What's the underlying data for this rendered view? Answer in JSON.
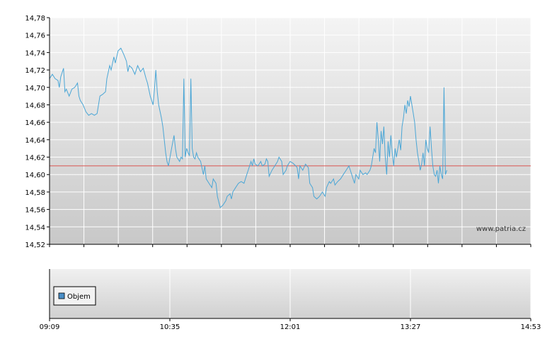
{
  "watermark": "www.patria.cz",
  "legend": {
    "label": "Objem",
    "color": "#4a8fc7"
  },
  "colors": {
    "price_line": "#4aa6d6",
    "reference_line": "#d9534f",
    "grid": "#ffffff",
    "axis": "#000000"
  },
  "chart_data": [
    {
      "type": "line",
      "title": "",
      "xlabel": "",
      "ylabel": "",
      "x_ticks": [
        "09:09",
        "10:35",
        "12:01",
        "13:27",
        "14:53"
      ],
      "x_range": [
        "09:09",
        "14:53"
      ],
      "ylim": [
        14.52,
        14.78
      ],
      "y_ticks": [
        "14,52",
        "14,54",
        "14,56",
        "14,58",
        "14,60",
        "14,62",
        "14,64",
        "14,66",
        "14,68",
        "14,70",
        "14,72",
        "14,74",
        "14,76",
        "14,78"
      ],
      "reference_line": 14.61,
      "series": [
        {
          "name": "",
          "points": [
            [
              "09:09",
              14.71
            ],
            [
              "09:11",
              14.715
            ],
            [
              "09:13",
              14.71
            ],
            [
              "09:15",
              14.708
            ],
            [
              "09:16",
              14.7
            ],
            [
              "09:17",
              14.712
            ],
            [
              "09:19",
              14.722
            ],
            [
              "09:20",
              14.695
            ],
            [
              "09:21",
              14.698
            ],
            [
              "09:23",
              14.69
            ],
            [
              "09:25",
              14.698
            ],
            [
              "09:27",
              14.7
            ],
            [
              "09:29",
              14.705
            ],
            [
              "09:30",
              14.69
            ],
            [
              "09:31",
              14.685
            ],
            [
              "09:33",
              14.68
            ],
            [
              "09:35",
              14.672
            ],
            [
              "09:37",
              14.668
            ],
            [
              "09:39",
              14.67
            ],
            [
              "09:41",
              14.668
            ],
            [
              "09:43",
              14.67
            ],
            [
              "09:45",
              14.69
            ],
            [
              "09:47",
              14.692
            ],
            [
              "09:49",
              14.695
            ],
            [
              "09:50",
              14.71
            ],
            [
              "09:52",
              14.725
            ],
            [
              "09:53",
              14.72
            ],
            [
              "09:55",
              14.735
            ],
            [
              "09:56",
              14.728
            ],
            [
              "09:58",
              14.742
            ],
            [
              "10:00",
              14.745
            ],
            [
              "10:02",
              14.738
            ],
            [
              "10:04",
              14.73
            ],
            [
              "10:05",
              14.718
            ],
            [
              "10:06",
              14.725
            ],
            [
              "10:08",
              14.722
            ],
            [
              "10:10",
              14.715
            ],
            [
              "10:12",
              14.725
            ],
            [
              "10:14",
              14.718
            ],
            [
              "10:16",
              14.722
            ],
            [
              "10:18",
              14.71
            ],
            [
              "10:19",
              14.705
            ],
            [
              "10:21",
              14.69
            ],
            [
              "10:23",
              14.68
            ],
            [
              "10:24",
              14.698
            ],
            [
              "10:25",
              14.72
            ],
            [
              "10:26",
              14.695
            ],
            [
              "10:27",
              14.68
            ],
            [
              "10:29",
              14.665
            ],
            [
              "10:30",
              14.655
            ],
            [
              "10:31",
              14.64
            ],
            [
              "10:32",
              14.625
            ],
            [
              "10:33",
              14.615
            ],
            [
              "10:34",
              14.61
            ],
            [
              "10:36",
              14.628
            ],
            [
              "10:38",
              14.645
            ],
            [
              "10:39",
              14.63
            ],
            [
              "10:40",
              14.62
            ],
            [
              "10:42",
              14.615
            ],
            [
              "10:43",
              14.62
            ],
            [
              "10:44",
              14.618
            ],
            [
              "10:45",
              14.71
            ],
            [
              "10:46",
              14.62
            ],
            [
              "10:47",
              14.63
            ],
            [
              "10:48",
              14.625
            ],
            [
              "10:49",
              14.622
            ],
            [
              "10:50",
              14.71
            ],
            [
              "10:51",
              14.63
            ],
            [
              "10:52",
              14.62
            ],
            [
              "10:53",
              14.618
            ],
            [
              "10:54",
              14.625
            ],
            [
              "10:55",
              14.62
            ],
            [
              "10:57",
              14.615
            ],
            [
              "10:59",
              14.6
            ],
            [
              "11:00",
              14.61
            ],
            [
              "11:01",
              14.595
            ],
            [
              "11:03",
              14.59
            ],
            [
              "11:05",
              14.585
            ],
            [
              "11:06",
              14.595
            ],
            [
              "11:08",
              14.59
            ],
            [
              "11:09",
              14.575
            ],
            [
              "11:11",
              14.562
            ],
            [
              "11:13",
              14.565
            ],
            [
              "11:15",
              14.57
            ],
            [
              "11:16",
              14.575
            ],
            [
              "11:18",
              14.578
            ],
            [
              "11:19",
              14.572
            ],
            [
              "11:20",
              14.58
            ],
            [
              "11:22",
              14.585
            ],
            [
              "11:24",
              14.59
            ],
            [
              "11:26",
              14.592
            ],
            [
              "11:28",
              14.59
            ],
            [
              "11:30",
              14.6
            ],
            [
              "11:31",
              14.605
            ],
            [
              "11:33",
              14.615
            ],
            [
              "11:34",
              14.61
            ],
            [
              "11:35",
              14.618
            ],
            [
              "11:36",
              14.612
            ],
            [
              "11:38",
              14.61
            ],
            [
              "11:40",
              14.615
            ],
            [
              "11:41",
              14.61
            ],
            [
              "11:43",
              14.612
            ],
            [
              "11:44",
              14.618
            ],
            [
              "11:45",
              14.615
            ],
            [
              "11:46",
              14.598
            ],
            [
              "11:48",
              14.605
            ],
            [
              "11:50",
              14.61
            ],
            [
              "11:52",
              14.615
            ],
            [
              "11:53",
              14.62
            ],
            [
              "11:55",
              14.615
            ],
            [
              "11:56",
              14.6
            ],
            [
              "11:58",
              14.605
            ],
            [
              "11:59",
              14.61
            ],
            [
              "12:01",
              14.615
            ],
            [
              "12:03",
              14.613
            ],
            [
              "12:05",
              14.61
            ],
            [
              "12:06",
              14.608
            ],
            [
              "12:07",
              14.595
            ],
            [
              "12:08",
              14.61
            ],
            [
              "12:10",
              14.605
            ],
            [
              "12:12",
              14.612
            ],
            [
              "12:14",
              14.608
            ],
            [
              "12:15",
              14.59
            ],
            [
              "12:17",
              14.585
            ],
            [
              "12:18",
              14.575
            ],
            [
              "12:20",
              14.572
            ],
            [
              "12:22",
              14.575
            ],
            [
              "12:24",
              14.58
            ],
            [
              "12:26",
              14.575
            ],
            [
              "12:27",
              14.585
            ],
            [
              "12:29",
              14.592
            ],
            [
              "12:30",
              14.59
            ],
            [
              "12:32",
              14.595
            ],
            [
              "12:33",
              14.588
            ],
            [
              "12:35",
              14.592
            ],
            [
              "12:37",
              14.595
            ],
            [
              "12:39",
              14.6
            ],
            [
              "12:41",
              14.605
            ],
            [
              "12:43",
              14.61
            ],
            [
              "12:44",
              14.605
            ],
            [
              "12:45",
              14.6
            ],
            [
              "12:47",
              14.59
            ],
            [
              "12:48",
              14.6
            ],
            [
              "12:50",
              14.595
            ],
            [
              "12:51",
              14.605
            ],
            [
              "12:53",
              14.6
            ],
            [
              "12:55",
              14.602
            ],
            [
              "12:56",
              14.6
            ],
            [
              "12:58",
              14.605
            ],
            [
              "12:59",
              14.61
            ],
            [
              "13:01",
              14.63
            ],
            [
              "13:02",
              14.625
            ],
            [
              "13:03",
              14.66
            ],
            [
              "13:04",
              14.64
            ],
            [
              "13:05",
              14.615
            ],
            [
              "13:06",
              14.65
            ],
            [
              "13:07",
              14.635
            ],
            [
              "13:08",
              14.655
            ],
            [
              "13:09",
              14.62
            ],
            [
              "13:10",
              14.6
            ],
            [
              "13:11",
              14.638
            ],
            [
              "13:12",
              14.62
            ],
            [
              "13:13",
              14.645
            ],
            [
              "13:14",
              14.625
            ],
            [
              "13:15",
              14.61
            ],
            [
              "13:16",
              14.63
            ],
            [
              "13:17",
              14.62
            ],
            [
              "13:19",
              14.64
            ],
            [
              "13:20",
              14.628
            ],
            [
              "13:21",
              14.655
            ],
            [
              "13:22",
              14.665
            ],
            [
              "13:23",
              14.68
            ],
            [
              "13:24",
              14.67
            ],
            [
              "13:25",
              14.685
            ],
            [
              "13:26",
              14.678
            ],
            [
              "13:27",
              14.69
            ],
            [
              "13:28",
              14.68
            ],
            [
              "13:29",
              14.67
            ],
            [
              "13:30",
              14.66
            ],
            [
              "13:31",
              14.64
            ],
            [
              "13:32",
              14.625
            ],
            [
              "13:33",
              14.615
            ],
            [
              "13:34",
              14.605
            ],
            [
              "13:35",
              14.612
            ],
            [
              "13:36",
              14.625
            ],
            [
              "13:37",
              14.61
            ],
            [
              "13:38",
              14.64
            ],
            [
              "13:39",
              14.63
            ],
            [
              "13:40",
              14.625
            ],
            [
              "13:41",
              14.655
            ],
            [
              "13:42",
              14.63
            ],
            [
              "13:43",
              14.61
            ],
            [
              "13:44",
              14.6
            ],
            [
              "13:45",
              14.598
            ],
            [
              "13:46",
              14.605
            ],
            [
              "13:47",
              14.59
            ],
            [
              "13:48",
              14.61
            ],
            [
              "13:49",
              14.6
            ],
            [
              "13:50",
              14.595
            ],
            [
              "13:51",
              14.7
            ],
            [
              "13:52",
              14.6
            ],
            [
              "13:53",
              14.605
            ]
          ]
        }
      ]
    },
    {
      "type": "bar",
      "title": "",
      "x_ticks": [
        "09:09",
        "10:35",
        "12:01",
        "13:27",
        "14:53"
      ],
      "series": [
        {
          "name": "Objem",
          "values": []
        }
      ]
    }
  ]
}
